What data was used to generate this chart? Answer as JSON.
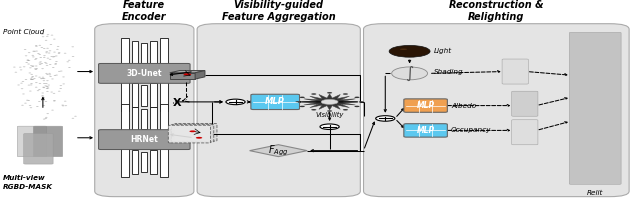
{
  "fig_width": 6.4,
  "fig_height": 2.04,
  "dpi": 100,
  "bg_color": "#ffffff",
  "section_bg": "#e4e4e4",
  "mlp_blue": "#5bc8ef",
  "mlp_orange": "#f0a050",
  "mlp_green": "#70cc70",
  "title_fontsize": 7.0,
  "small_fontsize": 5.2,
  "tiny_fontsize": 4.8,
  "enc_section": [
    0.148,
    0.04,
    0.155,
    0.94
  ],
  "vis_section": [
    0.308,
    0.04,
    0.255,
    0.94
  ],
  "rec_section": [
    0.568,
    0.04,
    0.415,
    0.94
  ]
}
